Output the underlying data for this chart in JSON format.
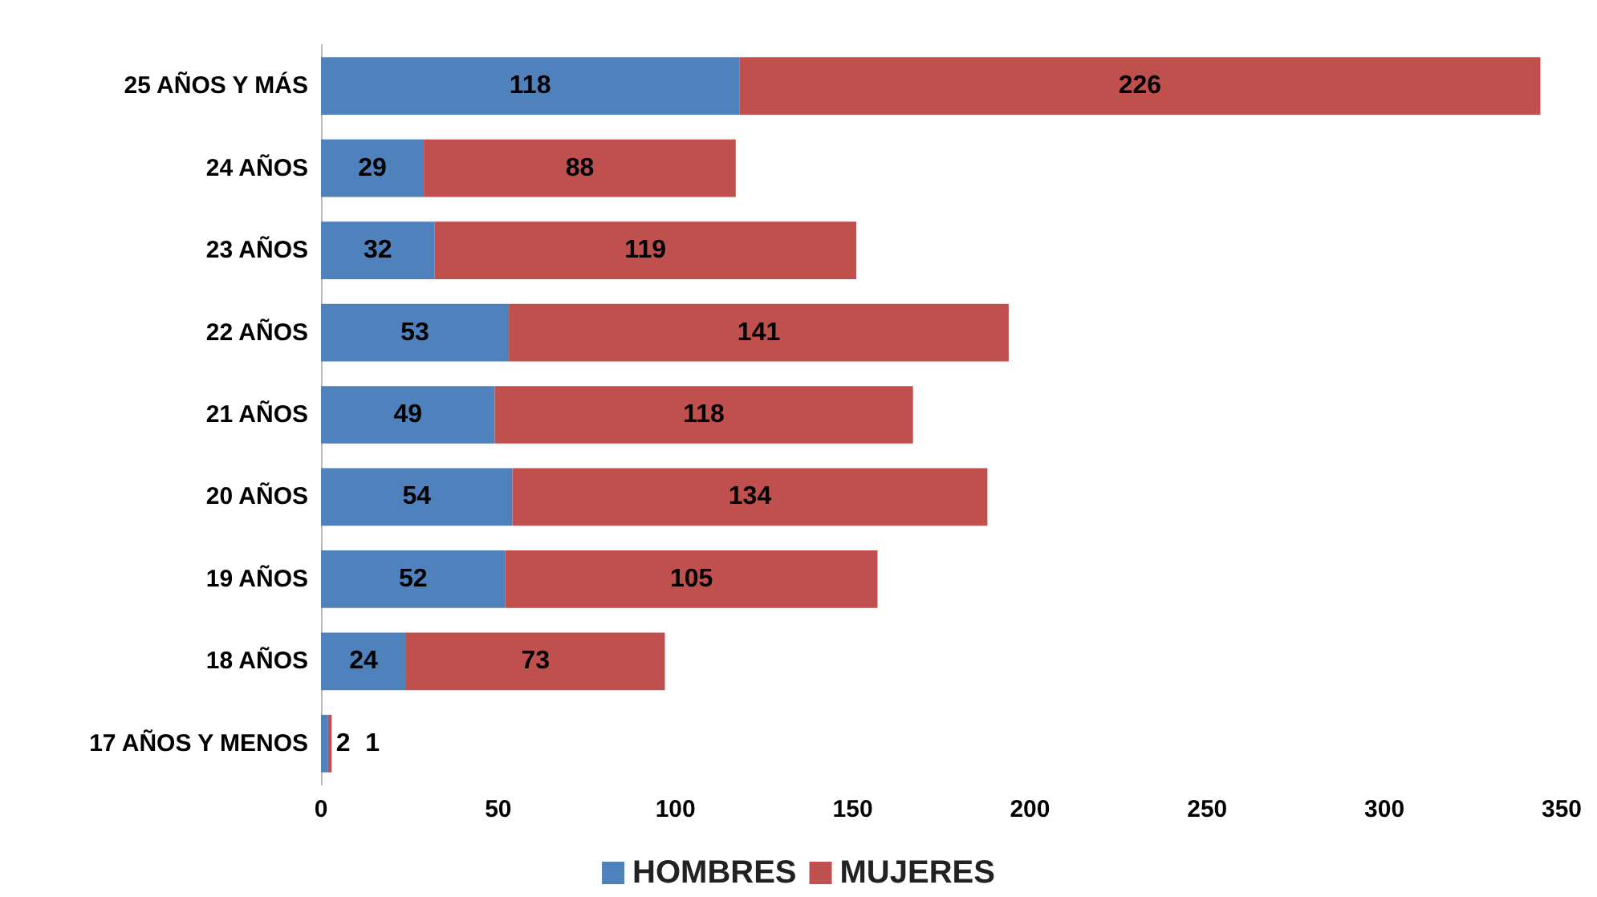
{
  "chart_data": {
    "type": "bar",
    "orientation": "horizontal",
    "stacked": true,
    "data_labels": true,
    "legend": "bottom",
    "grid": false,
    "categories": [
      "25 AÑOS Y MÁS",
      "24 AÑOS",
      "23 AÑOS",
      "22 AÑOS",
      "21 AÑOS",
      "20 AÑOS",
      "19 AÑOS",
      "18 AÑOS",
      "17 AÑOS Y MENOS"
    ],
    "xlim": [
      0,
      350
    ],
    "xticks": [
      0,
      50,
      100,
      150,
      200,
      250,
      300,
      350
    ],
    "series": [
      {
        "name": "HOMBRES",
        "color": "#4f81bd",
        "values": [
          118,
          29,
          32,
          53,
          49,
          54,
          52,
          24,
          2
        ]
      },
      {
        "name": "MUJERES",
        "color": "#c0504d",
        "values": [
          226,
          88,
          119,
          141,
          118,
          134,
          105,
          73,
          1
        ]
      }
    ]
  }
}
